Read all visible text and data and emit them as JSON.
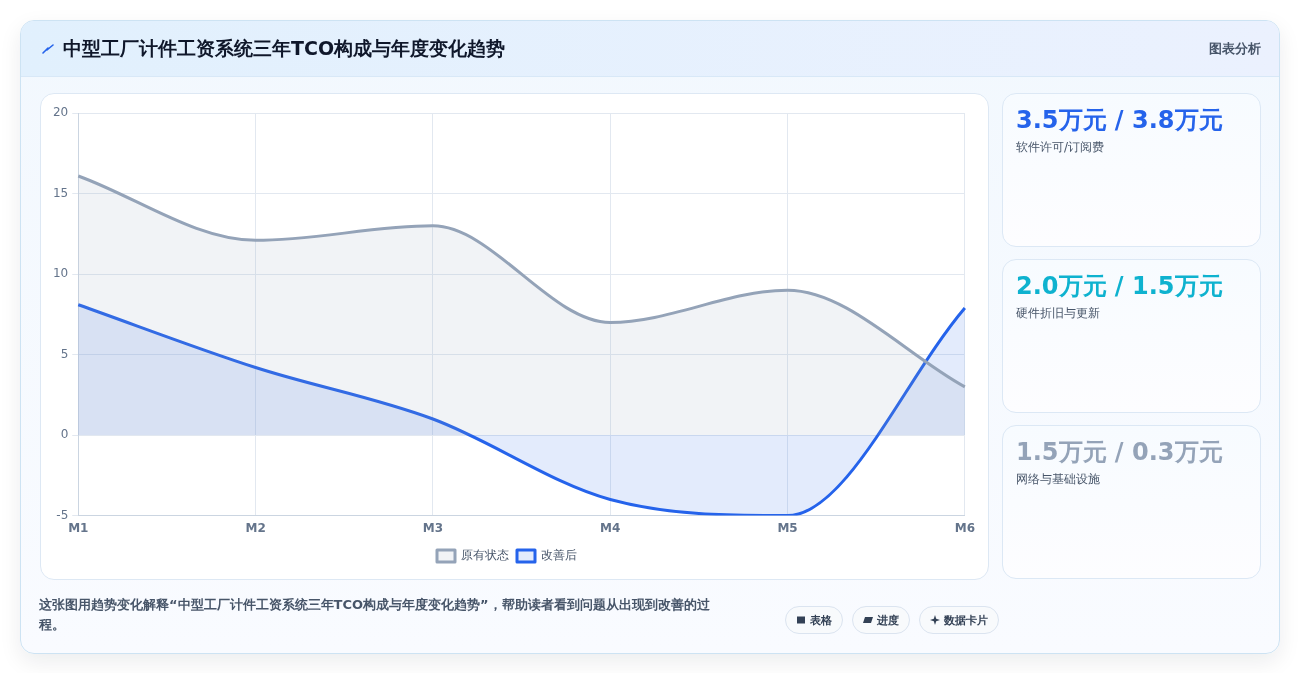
{
  "chart_data": [
    {
      "type": "area",
      "title": "中型工厂计件工资系统三年TCO构成与年度变化趋势",
      "categories": [
        "M1",
        "M2",
        "M3",
        "M4",
        "M5",
        "M6"
      ],
      "series": [
        {
          "name": "原有状态",
          "color": "#94a3b8",
          "values": [
            16.1,
            12.1,
            13,
            7,
            9,
            3
          ]
        },
        {
          "name": "改善后",
          "color": "#2563eb",
          "values": [
            8.1,
            4.2,
            1,
            -4,
            -5,
            7.9
          ]
        }
      ],
      "ylim": [
        -5,
        20
      ],
      "yticks": [
        -5,
        0,
        5,
        10,
        15,
        20
      ],
      "grid": true,
      "legend": "bottom",
      "annotations": [
        "图表分析",
        "这张图用趋势变化解释“中型工厂计件工资系统三年TCO构成与年度变化趋势”，帮助读者看到问题从出现到改善的过程。",
        "表格",
        "进度",
        "数据卡片"
      ]
    },
    {
      "type": "other",
      "title": "3.5万元 / 3.8万元",
      "subtitle": "软件许可/订阅费",
      "color": "#2563eb"
    },
    {
      "type": "other",
      "title": "2.0万元 / 1.5万元",
      "subtitle": "硬件折旧与更新",
      "color": "#0eb2cf"
    },
    {
      "type": "other",
      "title": "1.5万元 / 0.3万元",
      "subtitle": "网络与基础设施",
      "color": "#94a3b8"
    }
  ]
}
